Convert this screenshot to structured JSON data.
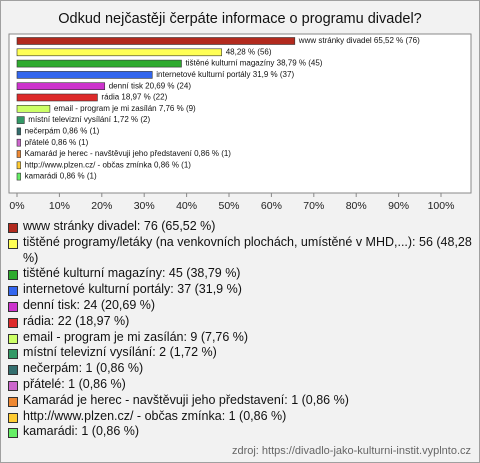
{
  "chart_data": {
    "type": "barh",
    "title": "Odkud nejčastěji čerpáte informace o programu divadel?",
    "values": [
      65.52,
      48.28,
      38.79,
      31.9,
      20.69,
      18.97,
      7.76,
      1.72,
      0.86,
      0.86,
      0.86,
      0.86,
      0.86
    ],
    "value_labels": [
      "www stránky divadel 65,52 % (76)",
      "48,28 % (56)",
      "tištěné kulturní magazíny 38,79 % (45)",
      "internetové kulturní portály 31,9 % (37)",
      "denní tisk 20,69 % (24)",
      "rádia 18,97 % (22)",
      "email - program je mi zasílán 7,76 % (9)",
      "místní televizní vysílání 1,72 % (2)",
      "nečerpám 0,86 % (1)",
      "přátelé 0,86 % (1)",
      "Kamarád je herec - navštěvuji jeho představení 0,86 % (1)",
      "http://www.plzen.cz/ - občas zmínka 0,86 % (1)",
      "kamarádi 0,86 % (1)"
    ],
    "legend_labels": [
      "www stránky divadel: 76 (65,52 %)",
      "tištěné programy/letáky (na venkovních plochách, umístěné v MHD,...): 56 (48,28 %)",
      "tištěné kulturní magazíny: 45 (38,79 %)",
      "internetové kulturní portály: 37 (31,9 %)",
      "denní tisk: 24 (20,69 %)",
      "rádia: 22 (18,97 %)",
      "email - program je mi zasílán: 9 (7,76 %)",
      "místní televizní vysílání: 2 (1,72 %)",
      "nečerpám: 1 (0,86 %)",
      "přátelé: 1 (0,86 %)",
      "Kamarád je herec - navštěvuji jeho představení: 1 (0,86 %)",
      "http://www.plzen.cz/ - občas zmínka: 1 (0,86 %)",
      "kamarádi: 1 (0,86 %)"
    ],
    "colors": [
      "#b22a1e",
      "#ffff55",
      "#2eaa2e",
      "#3366ee",
      "#cc33cc",
      "#dd2a2a",
      "#ccff66",
      "#339966",
      "#336e6e",
      "#cc66cc",
      "#ee8833",
      "#ffcc33",
      "#66ee66"
    ],
    "xlim": [
      0,
      100
    ],
    "xticks": [
      {
        "value": 0,
        "label": "0%"
      },
      {
        "value": 10,
        "label": "10%"
      },
      {
        "value": 20,
        "label": "20%"
      },
      {
        "value": 30,
        "label": "30%"
      },
      {
        "value": 40,
        "label": "40%"
      },
      {
        "value": 50,
        "label": "50%"
      },
      {
        "value": 60,
        "label": "60%"
      },
      {
        "value": 70,
        "label": "70%"
      },
      {
        "value": 80,
        "label": "80%"
      },
      {
        "value": 90,
        "label": "90%"
      },
      {
        "value": 100,
        "label": "100%"
      }
    ],
    "source": "zdroj: https://divadlo-jako-kulturni-instit.vyplnto.cz"
  }
}
